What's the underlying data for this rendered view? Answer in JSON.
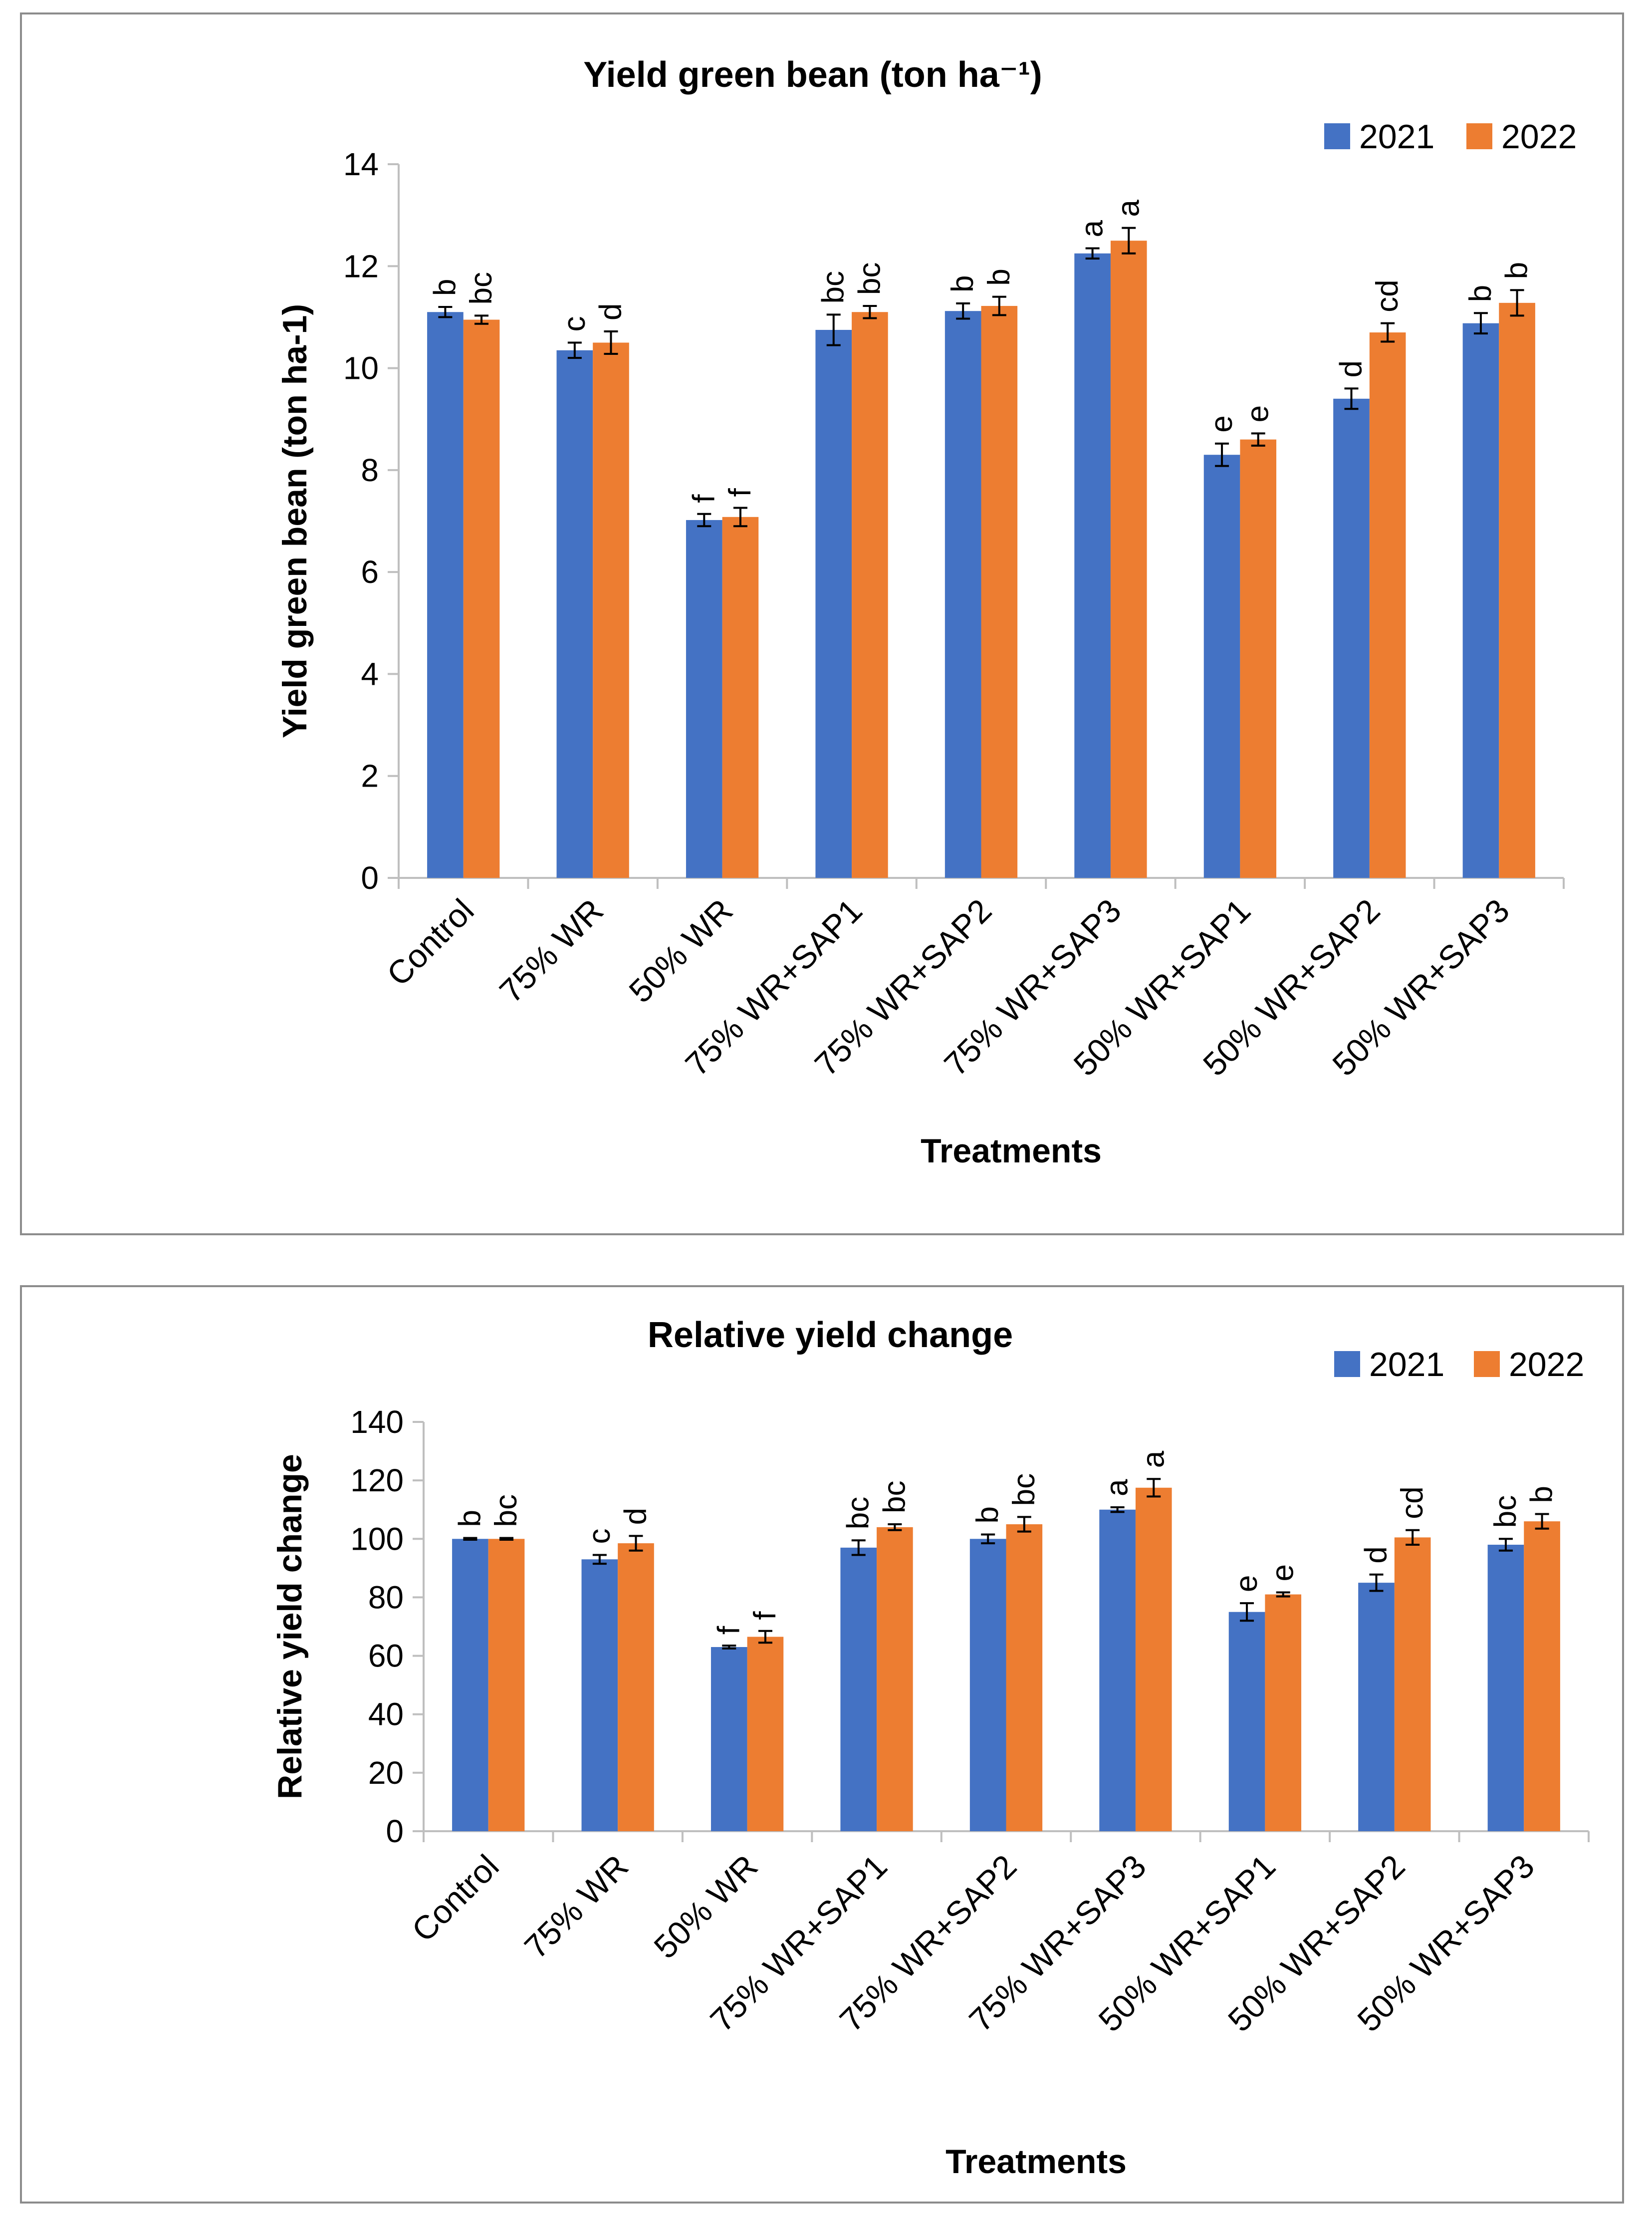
{
  "colors": {
    "series_2021": "#4472C4",
    "series_2022": "#ED7D31",
    "axis": "#bfbfbf",
    "error": "#000000"
  },
  "chart_data": [
    {
      "type": "bar",
      "title": "Yield green bean (ton ha⁻¹)",
      "xlabel": "Treatments",
      "ylabel": "Yield green bean (ton ha-1)",
      "ylim": [
        0,
        14
      ],
      "yticks": [
        "0",
        "2",
        "4",
        "6",
        "8",
        "10",
        "12",
        "14"
      ],
      "categories": [
        "Control",
        "75% WR",
        "50% WR",
        "75% WR+SAP1",
        "75% WR+SAP2",
        "75% WR+SAP3",
        "50% WR+SAP1",
        "50% WR+SAP2",
        "50% WR+SAP3"
      ],
      "legend": [
        "2021",
        "2022"
      ],
      "legend_position": "top-right",
      "series": [
        {
          "name": "2021",
          "values": [
            11.1,
            10.35,
            7.02,
            10.75,
            11.12,
            12.25,
            8.3,
            9.4,
            10.88
          ],
          "errors": [
            0.1,
            0.15,
            0.12,
            0.3,
            0.15,
            0.1,
            0.22,
            0.2,
            0.2
          ],
          "letters": [
            "b",
            "c",
            "f",
            "bc",
            "b",
            "a",
            "e",
            "d",
            "b"
          ]
        },
        {
          "name": "2022",
          "values": [
            10.95,
            10.5,
            7.08,
            11.1,
            11.22,
            12.5,
            8.6,
            10.7,
            11.28
          ],
          "errors": [
            0.08,
            0.22,
            0.18,
            0.12,
            0.18,
            0.25,
            0.12,
            0.18,
            0.25
          ],
          "letters": [
            "bc",
            "d",
            "f",
            "bc",
            "b",
            "a",
            "e",
            "cd",
            "b"
          ]
        }
      ]
    },
    {
      "type": "bar",
      "title": "Relative yield change",
      "xlabel": "Treatments",
      "ylabel": "Relative yield change",
      "ylim": [
        0,
        140
      ],
      "yticks": [
        "0",
        "20",
        "40",
        "60",
        "80",
        "100",
        "120",
        "140"
      ],
      "categories": [
        "Control",
        "75% WR",
        "50% WR",
        "75% WR+SAP1",
        "75% WR+SAP2",
        "75% WR+SAP3",
        "50% WR+SAP1",
        "50% WR+SAP2",
        "50% WR+SAP3"
      ],
      "legend": [
        "2021",
        "2022"
      ],
      "legend_position": "top-right",
      "series": [
        {
          "name": "2021",
          "values": [
            100,
            93,
            63,
            97,
            100,
            110,
            75,
            85,
            98
          ],
          "errors": [
            0.3,
            1.5,
            0.5,
            2.5,
            1.5,
            0.8,
            3,
            2.8,
            2
          ],
          "letters": [
            "b",
            "c",
            "f",
            "bc",
            "b",
            "a",
            "e",
            "d",
            "bc"
          ]
        },
        {
          "name": "2022",
          "values": [
            100,
            98.5,
            66.5,
            104,
            105,
            117.5,
            81,
            100.5,
            106
          ],
          "errors": [
            0.3,
            2.5,
            2,
            1,
            2.5,
            3,
            0.7,
            2.5,
            2.5
          ],
          "letters": [
            "bc",
            "d",
            "f",
            "bc",
            "bc",
            "a",
            "e",
            "cd",
            "b"
          ]
        }
      ]
    }
  ]
}
